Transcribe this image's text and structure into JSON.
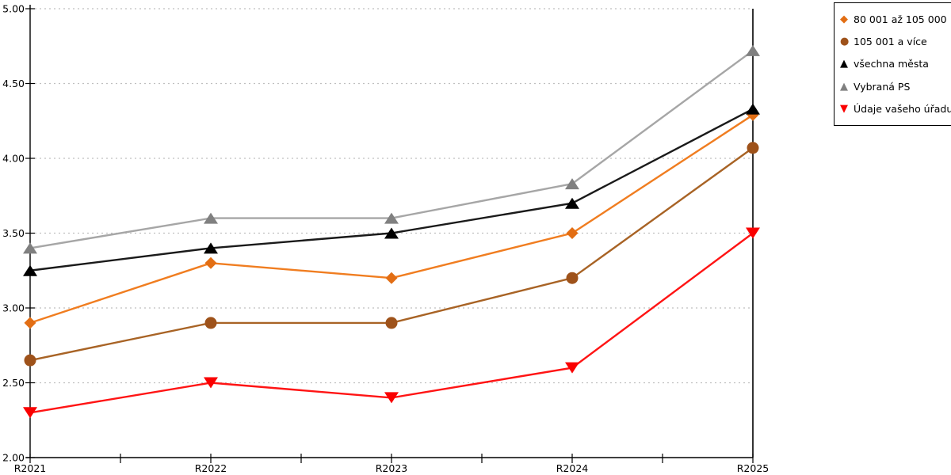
{
  "chart_data": {
    "type": "line",
    "title": "",
    "xlabel": "",
    "ylabel": "",
    "categories": [
      "R2021",
      "R2022",
      "R2023",
      "R2024",
      "R2025"
    ],
    "series": [
      {
        "name": "80 001 až 105 000",
        "marker": "diamond",
        "marker_glyph": "◆",
        "color": "#E26E14",
        "line_color": "#F07D20",
        "values": [
          2.9,
          3.3,
          3.2,
          3.5,
          4.29
        ]
      },
      {
        "name": "105 001 a více",
        "marker": "circle",
        "marker_glyph": "●",
        "color": "#9E521A",
        "line_color": "#A86325",
        "values": [
          2.65,
          2.9,
          2.9,
          3.2,
          4.07
        ]
      },
      {
        "name": "všechna města",
        "marker": "triangle-up",
        "marker_glyph": "▲",
        "color": "#000000",
        "line_color": "#1A1A1A",
        "values": [
          3.25,
          3.4,
          3.5,
          3.7,
          4.33
        ]
      },
      {
        "name": "Vybraná PS",
        "marker": "triangle-up",
        "marker_glyph": "▲",
        "color": "#808080",
        "line_color": "#A6A6A6",
        "values": [
          3.4,
          3.6,
          3.6,
          3.83,
          4.72
        ]
      },
      {
        "name": "Údaje vašeho úřadu",
        "marker": "triangle-down",
        "marker_glyph": "▼",
        "color": "#FA0000",
        "line_color": "#FF1414",
        "values": [
          2.3,
          2.5,
          2.4,
          2.6,
          3.5
        ]
      }
    ],
    "ylim": [
      2.0,
      5.0
    ],
    "ytick_step": 0.5,
    "ytick_labels": [
      "5.00",
      "4.50",
      "4.00",
      "3.50",
      "3.00",
      "2.50",
      "2.00"
    ],
    "grid": "horizontal-dotted",
    "legend_position": "top-right"
  },
  "colors": {
    "background": "#FFFFFF",
    "axis": "#000000",
    "gridline": "#BFBFBF",
    "legend_border": "#000000"
  }
}
